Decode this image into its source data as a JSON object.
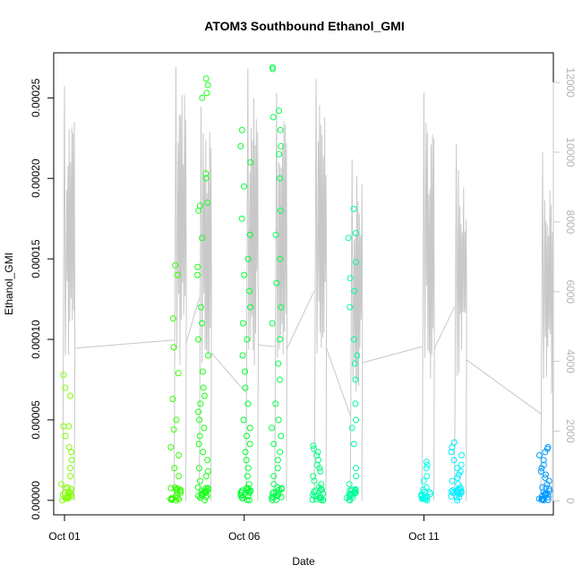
{
  "chart_data": {
    "type": "scatter",
    "title": "ATOM3 Southbound Ethanol_GMI",
    "xlabel": "Date",
    "ylabel": "Ethanol_GMI",
    "x_ticks": [
      "Oct 01",
      "Oct 06",
      "Oct 11"
    ],
    "x_range_days": [
      0.7,
      14.6
    ],
    "x_tick_days": [
      1,
      6,
      11
    ],
    "y_left_range": [
      -9e-06,
      0.000278
    ],
    "y_left_ticks": [
      "0.00000",
      "0.00005",
      "0.00010",
      "0.00015",
      "0.00020",
      "0.00025"
    ],
    "y_left_tick_values": [
      0,
      5e-05,
      0.0001,
      0.00015,
      0.0002,
      0.00025
    ],
    "y_right_range": [
      -400,
      12850
    ],
    "y_right_ticks": [
      "0",
      "2000",
      "4000",
      "6000",
      "8000",
      "10000",
      "12000"
    ],
    "y_right_tick_values": [
      0,
      2000,
      4000,
      6000,
      8000,
      10000,
      12000
    ],
    "y_right_color": "#c8c8c8",
    "grid": false,
    "flights": [
      {
        "day": 1.05,
        "color": "#80ff00",
        "y": [
          0.0,
          2e-06,
          5e-06,
          1e-05,
          1.5e-05,
          2e-05,
          2.5e-05,
          3e-05,
          3.3e-05,
          4e-05,
          4.6e-05,
          4.6e-05,
          6.5e-05,
          7e-05,
          7.8e-05
        ]
      },
      {
        "day": 4.1,
        "color": "#33ff00",
        "y": [
          0.0,
          3e-06,
          7e-06,
          1.5e-05,
          2e-05,
          2.8e-05,
          3.3e-05,
          4.4e-05,
          5e-05,
          6.3e-05,
          7.9e-05,
          9.5e-05,
          0.000113,
          0.00014,
          0.000146
        ]
      },
      {
        "day": 4.85,
        "color": "#1aff1a",
        "y": [
          0.0,
          2e-06,
          4e-06,
          6e-06,
          8e-06,
          1.2e-05,
          1.5e-05,
          1.8e-05,
          2e-05,
          2.5e-05,
          3e-05,
          3.5e-05,
          4e-05,
          4.5e-05,
          5e-05,
          5.5e-05,
          6e-05,
          6.5e-05,
          7e-05,
          8e-05,
          9e-05,
          0.0001,
          0.00011,
          0.00012,
          0.00014,
          0.000145,
          0.000163,
          0.00018,
          0.000183,
          0.000185,
          0.0002,
          0.000203,
          0.00025,
          0.000253,
          0.000258,
          0.000262
        ]
      },
      {
        "day": 6.05,
        "color": "#00ff33",
        "y": [
          0.0,
          3e-06,
          6e-06,
          1e-05,
          1.5e-05,
          2e-05,
          2.5e-05,
          3e-05,
          3.5e-05,
          4e-05,
          4.5e-05,
          5e-05,
          6e-05,
          7e-05,
          8e-05,
          9e-05,
          0.0001,
          0.00011,
          0.00012,
          0.00013,
          0.00014,
          0.00015,
          0.000165,
          0.000175,
          0.000195,
          0.00021,
          0.00022,
          0.00023
        ]
      },
      {
        "day": 6.9,
        "color": "#00ff4d",
        "y": [
          5e-06,
          8e-06,
          1e-05,
          1.5e-05,
          2e-05,
          2.5e-05,
          3e-05,
          3.5e-05,
          4e-05,
          4.5e-05,
          5e-05,
          6e-05,
          7.5e-05,
          8.5e-05,
          0.0001,
          0.00011,
          0.00012,
          0.000135,
          0.00015,
          0.000165,
          0.00018,
          0.0002,
          0.000215,
          0.00022,
          0.00023,
          0.000238,
          0.000242,
          0.000268,
          0.000269
        ]
      },
      {
        "day": 8.05,
        "color": "#00ff80",
        "y": [
          0.0,
          2e-06,
          4e-06,
          6e-06,
          8e-06,
          1e-05,
          1.2e-05,
          1.5e-05,
          1.8e-05,
          2e-05,
          2.2e-05,
          2.5e-05,
          2.8e-05,
          3e-05,
          3.2e-05,
          3.4e-05
        ]
      },
      {
        "day": 9.0,
        "color": "#00ff99",
        "y": [
          0.0,
          3e-06,
          6e-06,
          1e-05,
          1.5e-05,
          2e-05,
          3.5e-05,
          4.5e-05,
          5e-05,
          6e-05,
          7.5e-05,
          8.5e-05,
          9e-05,
          0.0001,
          0.00012,
          0.00013,
          0.000138,
          0.000148,
          0.000163,
          0.000166,
          0.000181
        ]
      },
      {
        "day": 11.05,
        "color": "#00ffe6",
        "y": [
          0.0,
          2e-06,
          4e-06,
          8e-06,
          1.2e-05,
          1.5e-05,
          2e-05,
          2.2e-05,
          2.4e-05
        ]
      },
      {
        "day": 11.9,
        "color": "#00eeff",
        "y": [
          0.0,
          2e-06,
          4e-06,
          6e-06,
          8e-06,
          1e-05,
          1.2e-05,
          1.4e-05,
          1.6e-05,
          1.8e-05,
          2e-05,
          2.2e-05,
          2.5e-05,
          2.8e-05,
          3e-05,
          3.3e-05,
          3.6e-05
        ]
      },
      {
        "day": 14.35,
        "color": "#0099ff",
        "y": [
          0.0,
          1e-06,
          2e-06,
          4e-06,
          6e-06,
          8e-06,
          1e-05,
          1.2e-05,
          1.4e-05,
          1.6e-05,
          1.8e-05,
          2e-05,
          2.2e-05,
          2.5e-05,
          2.8e-05,
          3e-05,
          3.2e-05,
          3.3e-05
        ]
      }
    ],
    "altitude_series": [
      {
        "day": 1.0,
        "peak": 11900
      },
      {
        "day": 4.1,
        "peak": 12450
      },
      {
        "day": 4.8,
        "peak": 11300
      },
      {
        "day": 6.1,
        "peak": 12400
      },
      {
        "day": 6.9,
        "peak": 11700
      },
      {
        "day": 8.0,
        "peak": 12100
      },
      {
        "day": 9.0,
        "peak": 9800
      },
      {
        "day": 11.0,
        "peak": 11700
      },
      {
        "day": 11.9,
        "peak": 10250
      },
      {
        "day": 14.3,
        "peak": 10000
      }
    ]
  }
}
